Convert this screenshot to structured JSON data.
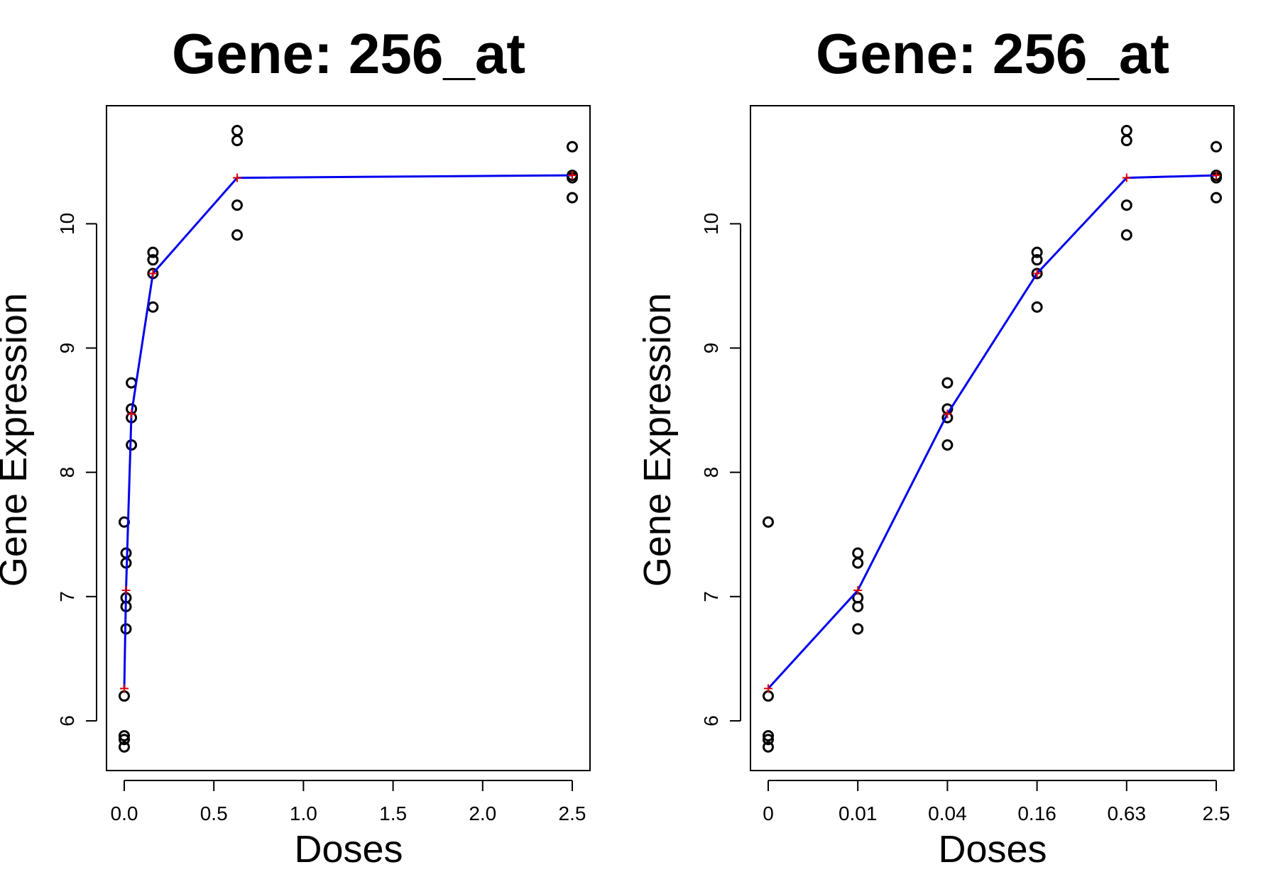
{
  "chart_data": [
    {
      "type": "scatter",
      "title": "Gene: 256_at",
      "xlabel": "Doses",
      "ylabel": "Gene Expression",
      "x_scale": "linear",
      "xlim": [
        0,
        2.5
      ],
      "ylim": [
        5.6,
        10.95
      ],
      "x_ticks": [
        0,
        0.5,
        1.0,
        1.5,
        2.0,
        2.5
      ],
      "x_tick_labels": [
        "0.0",
        "0.5",
        "1.0",
        "1.5",
        "2.0",
        "2.5"
      ],
      "y_ticks": [
        6,
        7,
        8,
        9,
        10
      ],
      "y_tick_labels": [
        "6",
        "7",
        "8",
        "9",
        "10"
      ],
      "grid": false,
      "series": [
        {
          "kind": "points",
          "marker": "open-circle",
          "color": "#000000",
          "points": [
            [
              0,
              5.79
            ],
            [
              0,
              5.85
            ],
            [
              0,
              5.88
            ],
            [
              0,
              6.2
            ],
            [
              0,
              7.6
            ],
            [
              0.01,
              6.74
            ],
            [
              0.01,
              6.92
            ],
            [
              0.01,
              6.99
            ],
            [
              0.01,
              7.27
            ],
            [
              0.01,
              7.35
            ],
            [
              0.04,
              8.22
            ],
            [
              0.04,
              8.44
            ],
            [
              0.04,
              8.51
            ],
            [
              0.04,
              8.72
            ],
            [
              0.16,
              9.33
            ],
            [
              0.16,
              9.6
            ],
            [
              0.16,
              9.71
            ],
            [
              0.16,
              9.77
            ],
            [
              0.63,
              9.91
            ],
            [
              0.63,
              10.15
            ],
            [
              0.63,
              10.67
            ],
            [
              0.63,
              10.75
            ],
            [
              2.5,
              10.21
            ],
            [
              2.5,
              10.37
            ],
            [
              2.5,
              10.39
            ],
            [
              2.5,
              10.62
            ]
          ]
        },
        {
          "kind": "line",
          "marker": "plus",
          "color": "#0000ee",
          "marker_color": "#dd0000",
          "points": [
            [
              0,
              6.26
            ],
            [
              0.01,
              7.05
            ],
            [
              0.04,
              8.47
            ],
            [
              0.16,
              9.6
            ],
            [
              0.63,
              10.37
            ],
            [
              2.5,
              10.39
            ]
          ]
        }
      ]
    },
    {
      "type": "scatter",
      "title": "Gene: 256_at",
      "xlabel": "Doses",
      "ylabel": "Gene Expression",
      "x_scale": "categorical",
      "categories": [
        "0",
        "0.01",
        "0.04",
        "0.16",
        "0.63",
        "2.5"
      ],
      "ylim": [
        5.6,
        10.95
      ],
      "y_ticks": [
        6,
        7,
        8,
        9,
        10
      ],
      "y_tick_labels": [
        "6",
        "7",
        "8",
        "9",
        "10"
      ],
      "grid": false,
      "series": [
        {
          "kind": "points",
          "marker": "open-circle",
          "color": "#000000",
          "points": [
            [
              "0",
              5.79
            ],
            [
              "0",
              5.85
            ],
            [
              "0",
              5.88
            ],
            [
              "0",
              6.2
            ],
            [
              "0",
              7.6
            ],
            [
              "0.01",
              6.74
            ],
            [
              "0.01",
              6.92
            ],
            [
              "0.01",
              6.99
            ],
            [
              "0.01",
              7.27
            ],
            [
              "0.01",
              7.35
            ],
            [
              "0.04",
              8.22
            ],
            [
              "0.04",
              8.44
            ],
            [
              "0.04",
              8.51
            ],
            [
              "0.04",
              8.72
            ],
            [
              "0.16",
              9.33
            ],
            [
              "0.16",
              9.6
            ],
            [
              "0.16",
              9.71
            ],
            [
              "0.16",
              9.77
            ],
            [
              "0.63",
              9.91
            ],
            [
              "0.63",
              10.15
            ],
            [
              "0.63",
              10.67
            ],
            [
              "0.63",
              10.75
            ],
            [
              "2.5",
              10.21
            ],
            [
              "2.5",
              10.37
            ],
            [
              "2.5",
              10.39
            ],
            [
              "2.5",
              10.62
            ]
          ]
        },
        {
          "kind": "line",
          "marker": "plus",
          "color": "#0000ee",
          "marker_color": "#dd0000",
          "points": [
            [
              "0",
              6.26
            ],
            [
              "0.01",
              7.05
            ],
            [
              "0.04",
              8.47
            ],
            [
              "0.16",
              9.6
            ],
            [
              "0.63",
              10.37
            ],
            [
              "2.5",
              10.39
            ]
          ]
        }
      ]
    }
  ]
}
